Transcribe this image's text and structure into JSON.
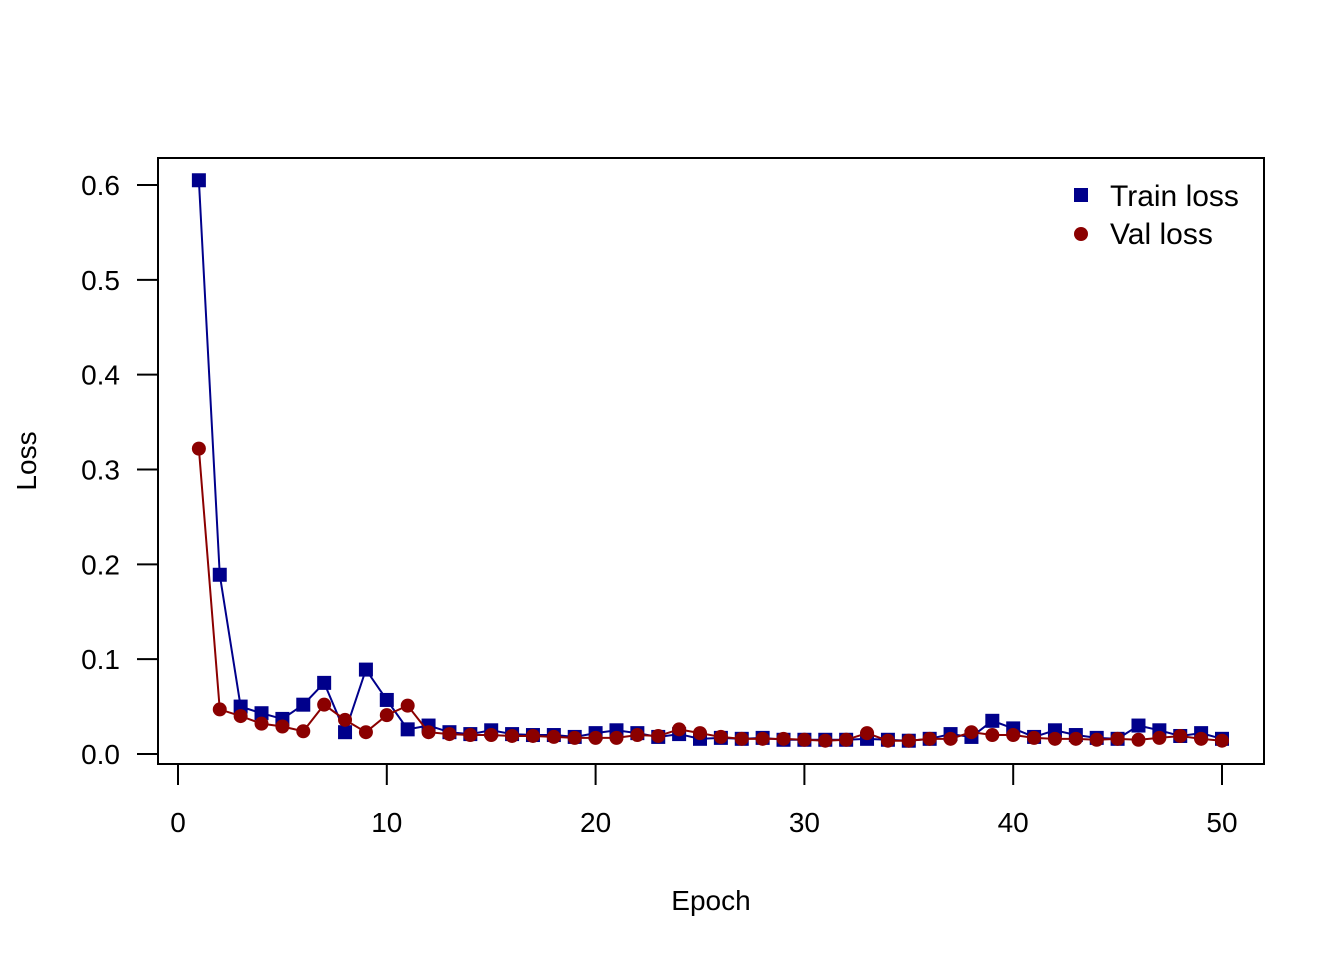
{
  "chart_data": {
    "type": "line",
    "title": "",
    "xlabel": "Epoch",
    "ylabel": "Loss",
    "xlim": [
      0,
      50
    ],
    "ylim": [
      0,
      0.6
    ],
    "xticks": [
      "0",
      "10",
      "20",
      "30",
      "40",
      "50"
    ],
    "yticks": [
      "0.0",
      "0.1",
      "0.2",
      "0.3",
      "0.4",
      "0.5",
      "0.6"
    ],
    "grid": false,
    "legend_position": "top-right",
    "x": [
      1,
      2,
      3,
      4,
      5,
      6,
      7,
      8,
      9,
      10,
      11,
      12,
      13,
      14,
      15,
      16,
      17,
      18,
      19,
      20,
      21,
      22,
      23,
      24,
      25,
      26,
      27,
      28,
      29,
      30,
      31,
      32,
      33,
      34,
      35,
      36,
      37,
      38,
      39,
      40,
      41,
      42,
      43,
      44,
      45,
      46,
      47,
      48,
      49,
      50
    ],
    "series": [
      {
        "name": "Train loss",
        "color": "#00008B",
        "marker": "square",
        "values": [
          0.605,
          0.189,
          0.05,
          0.043,
          0.037,
          0.052,
          0.075,
          0.023,
          0.089,
          0.057,
          0.026,
          0.03,
          0.023,
          0.021,
          0.025,
          0.021,
          0.02,
          0.02,
          0.018,
          0.022,
          0.025,
          0.022,
          0.018,
          0.021,
          0.016,
          0.017,
          0.016,
          0.017,
          0.015,
          0.015,
          0.015,
          0.015,
          0.016,
          0.015,
          0.014,
          0.016,
          0.021,
          0.018,
          0.035,
          0.027,
          0.018,
          0.025,
          0.02,
          0.017,
          0.016,
          0.03,
          0.025,
          0.019,
          0.022,
          0.016
        ]
      },
      {
        "name": "Val loss",
        "color": "#8B0000",
        "marker": "circle",
        "values": [
          0.322,
          0.047,
          0.04,
          0.032,
          0.029,
          0.024,
          0.052,
          0.036,
          0.023,
          0.041,
          0.051,
          0.023,
          0.021,
          0.02,
          0.02,
          0.019,
          0.019,
          0.018,
          0.017,
          0.017,
          0.017,
          0.02,
          0.019,
          0.026,
          0.022,
          0.018,
          0.016,
          0.016,
          0.016,
          0.015,
          0.014,
          0.015,
          0.022,
          0.014,
          0.014,
          0.016,
          0.016,
          0.023,
          0.02,
          0.02,
          0.017,
          0.016,
          0.016,
          0.015,
          0.016,
          0.015,
          0.017,
          0.019,
          0.016,
          0.014
        ]
      }
    ]
  }
}
